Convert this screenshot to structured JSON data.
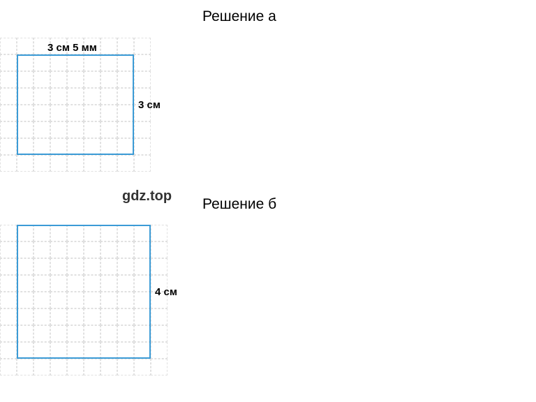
{
  "titles": {
    "a": "Решение а",
    "b": "Решение б"
  },
  "watermark": "gdz.top",
  "diagramA": {
    "gridCols": 9,
    "gridRows": 8,
    "cellSize": 24,
    "gridColor": "#e0e0e0",
    "rectColor": "#3b9bd6",
    "rectLeftCol": 1,
    "rectTopRow": 1,
    "rectWidthCells": 7,
    "rectHeightCells": 6,
    "labelTop": "3 см 5 мм",
    "labelRight": "3 см"
  },
  "diagramB": {
    "gridCols": 10,
    "gridRows": 9,
    "cellSize": 24,
    "gridColor": "#e0e0e0",
    "rectColor": "#3b9bd6",
    "rectLeftCol": 1,
    "rectTopRow": 0,
    "rectWidthCells": 8,
    "rectHeightCells": 8,
    "labelRight": "4 см"
  }
}
